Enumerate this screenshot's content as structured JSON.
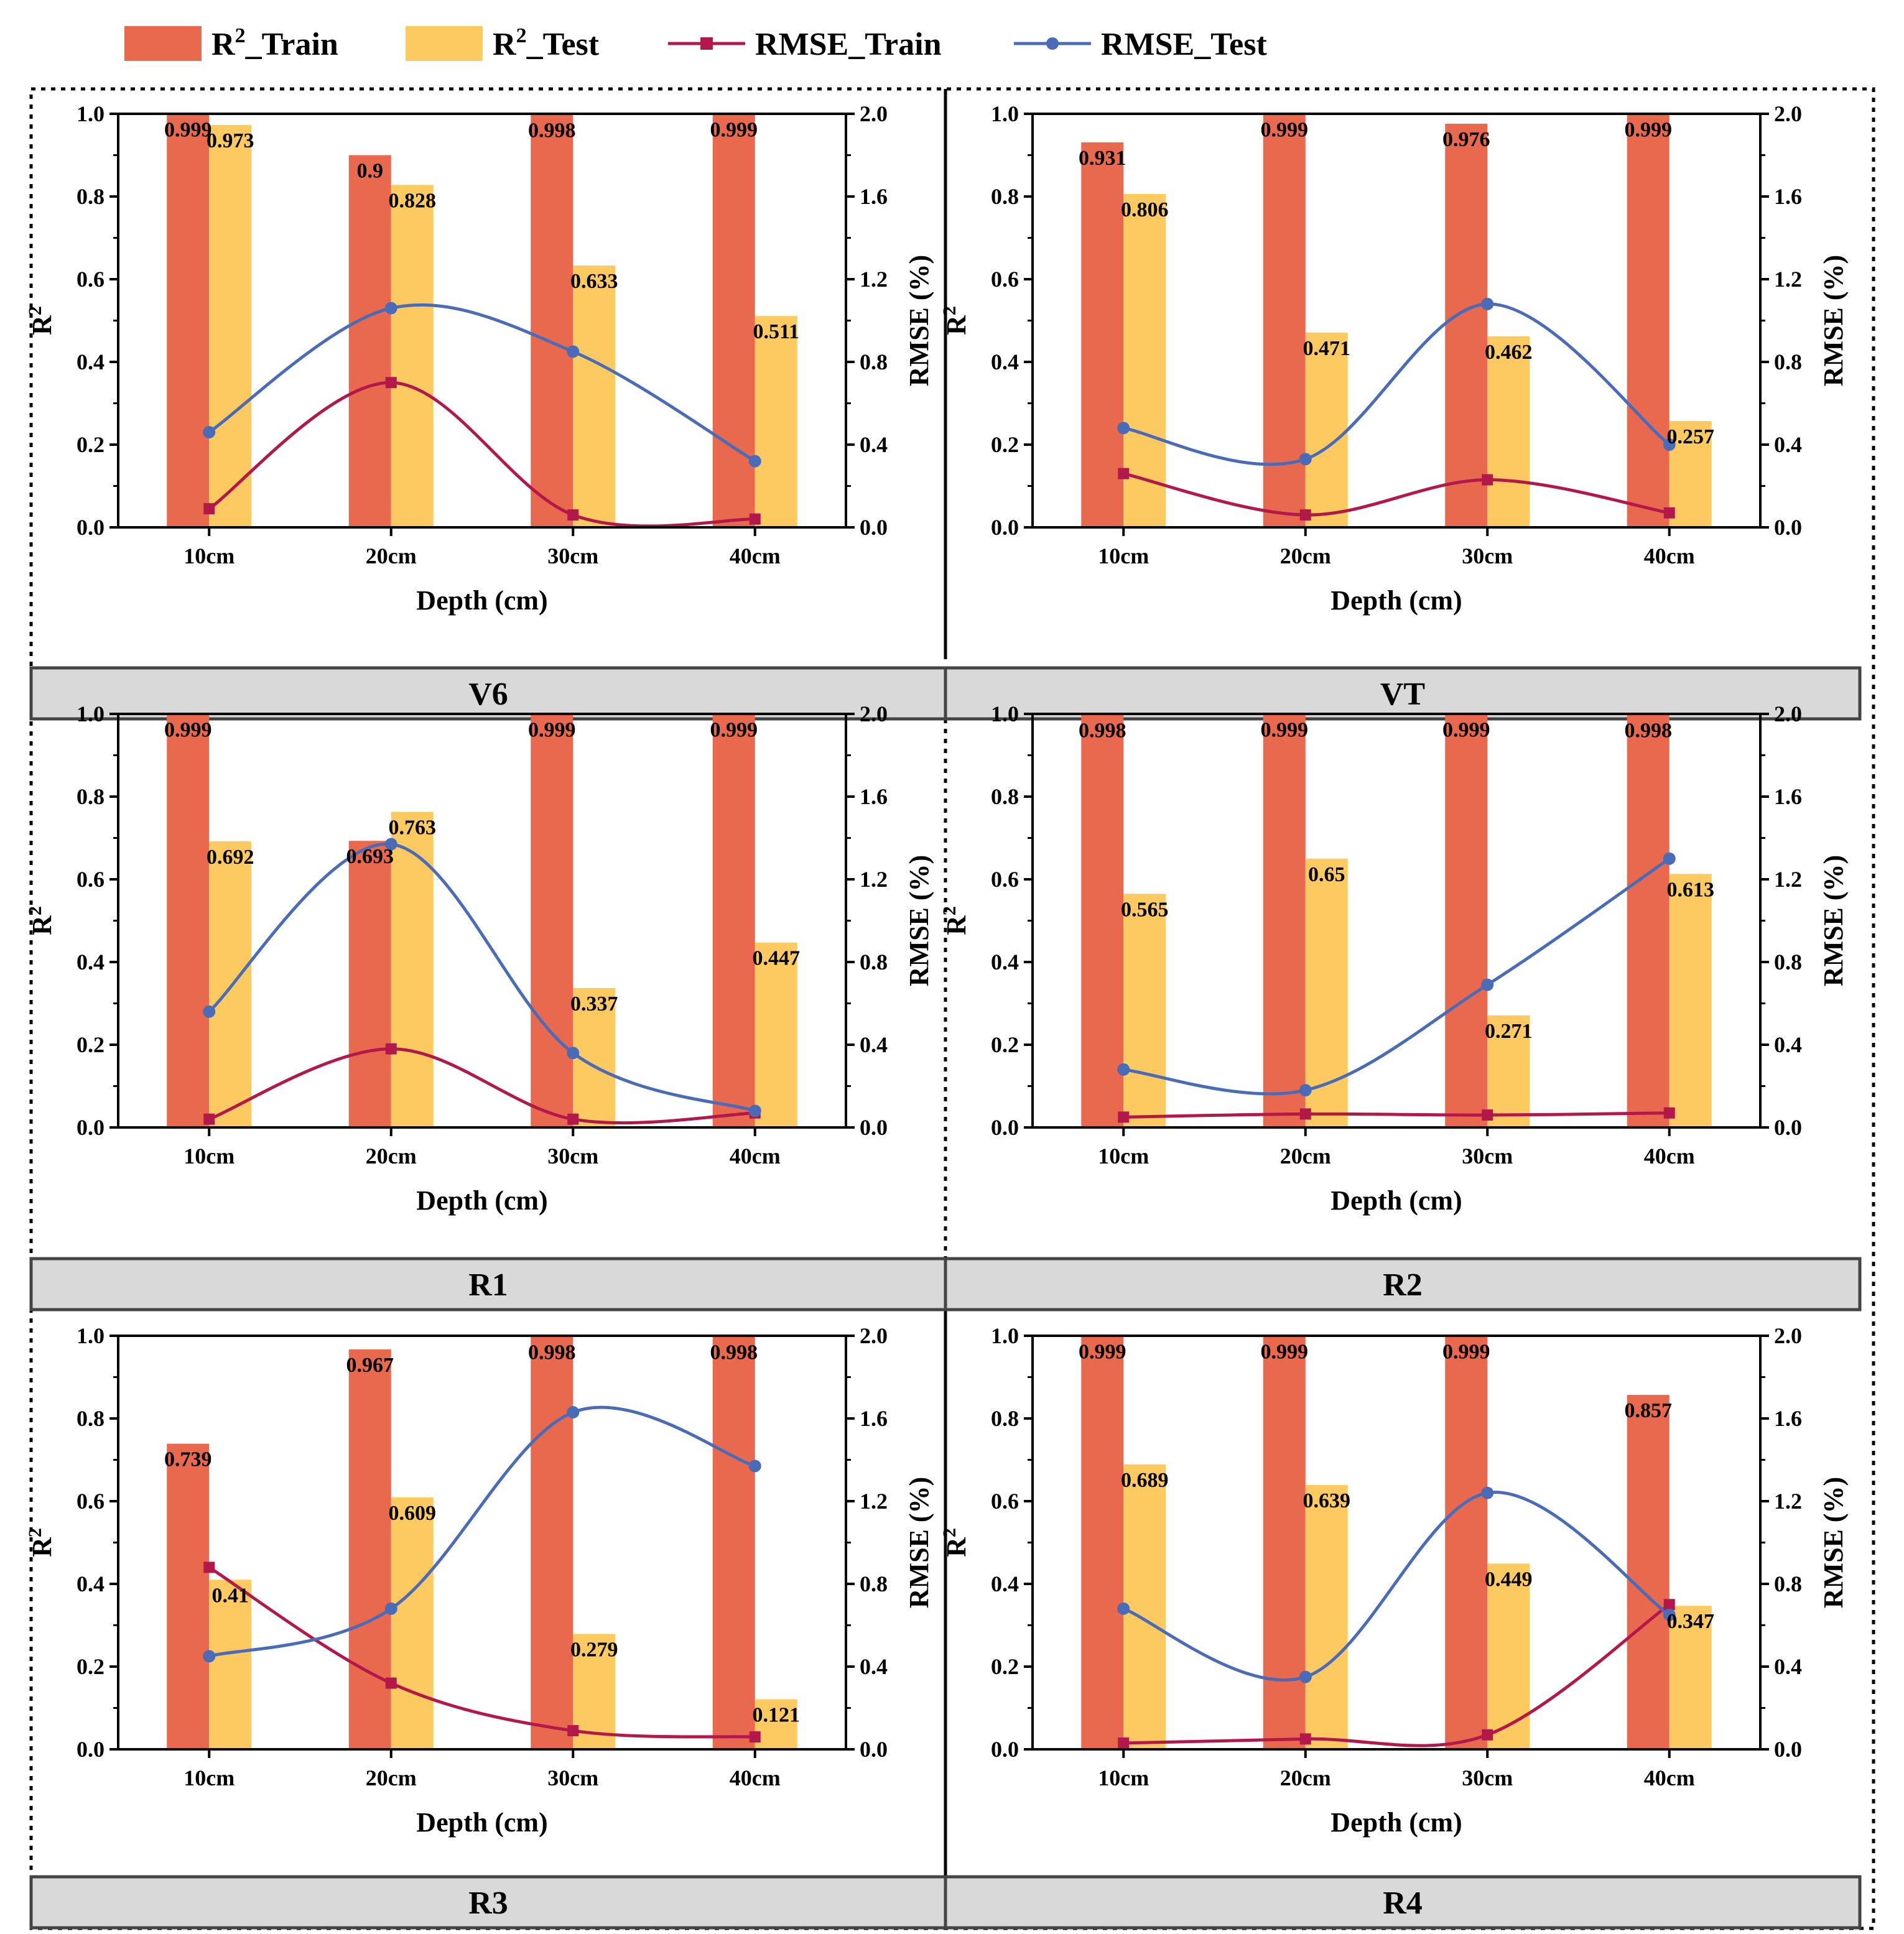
{
  "legend": [
    {
      "key": "train_r2",
      "prefix": "R",
      "sup": "2",
      "suffix": "_Train",
      "kind": "bar",
      "color": "#e8694e"
    },
    {
      "key": "test_r2",
      "prefix": "R",
      "sup": "2",
      "suffix": "_Test",
      "kind": "bar",
      "color": "#fdca62"
    },
    {
      "key": "rmse_train",
      "prefix": "",
      "sup": "",
      "suffix": "RMSE_Train",
      "kind": "line",
      "color": "#b3184a"
    },
    {
      "key": "rmse_test",
      "prefix": "",
      "sup": "",
      "suffix": "RMSE_Test",
      "kind": "line",
      "color": "#4a6cb8"
    }
  ],
  "axis_text": {
    "xlabel": "Depth (cm)",
    "ylabel_left_base": "R",
    "ylabel_left_sup": "2",
    "ylabel_right": "RMSE (%)"
  },
  "chart_data": [
    {
      "type": "bar",
      "title": "V6",
      "categories": [
        "10cm",
        "20cm",
        "30cm",
        "40cm"
      ],
      "ylim": [
        0,
        1.0
      ],
      "y2lim": [
        0,
        2.0
      ],
      "yticks": [
        "0.0",
        "0.2",
        "0.4",
        "0.6",
        "0.8",
        "1.0"
      ],
      "y2ticks": [
        "0.0",
        "0.4",
        "0.8",
        "1.2",
        "1.6",
        "2.0"
      ],
      "train_r2": [
        0.999,
        0.9,
        0.998,
        0.999
      ],
      "train_labels": [
        "0.999",
        "0.9",
        "0.998",
        "0.999"
      ],
      "test_r2": [
        0.973,
        0.828,
        0.633,
        0.511
      ],
      "test_labels": [
        "0.973",
        "0.828",
        "0.633",
        "0.511"
      ],
      "rmse_train": [
        0.09,
        0.7,
        0.06,
        0.04
      ],
      "rmse_test": [
        0.46,
        1.06,
        0.85,
        0.32
      ]
    },
    {
      "type": "bar",
      "title": "VT",
      "categories": [
        "10cm",
        "20cm",
        "30cm",
        "40cm"
      ],
      "ylim": [
        0,
        1.0
      ],
      "y2lim": [
        0,
        2.0
      ],
      "yticks": [
        "0.0",
        "0.2",
        "0.4",
        "0.6",
        "0.8",
        "1.0"
      ],
      "y2ticks": [
        "0.0",
        "0.4",
        "0.8",
        "1.2",
        "1.6",
        "2.0"
      ],
      "train_r2": [
        0.931,
        0.999,
        0.976,
        0.999
      ],
      "train_labels": [
        "0.931",
        "0.999",
        "0.976",
        "0.999"
      ],
      "test_r2": [
        0.806,
        0.471,
        0.462,
        0.257
      ],
      "test_labels": [
        "0.806",
        "0.471",
        "0.462",
        "0.257"
      ],
      "rmse_train": [
        0.26,
        0.06,
        0.23,
        0.07
      ],
      "rmse_test": [
        0.48,
        0.33,
        1.08,
        0.4
      ]
    },
    {
      "type": "bar",
      "title": "R1",
      "categories": [
        "10cm",
        "20cm",
        "30cm",
        "40cm"
      ],
      "ylim": [
        0,
        1.0
      ],
      "y2lim": [
        0,
        2.0
      ],
      "yticks": [
        "0.0",
        "0.2",
        "0.4",
        "0.6",
        "0.8",
        "1.0"
      ],
      "y2ticks": [
        "0.0",
        "0.4",
        "0.8",
        "1.2",
        "1.6",
        "2.0"
      ],
      "train_r2": [
        0.999,
        0.693,
        0.999,
        0.999
      ],
      "train_labels": [
        "0.999",
        "0.693",
        "0.999",
        "0.999"
      ],
      "test_r2": [
        0.692,
        0.763,
        0.337,
        0.447
      ],
      "test_labels": [
        "0.692",
        "0.763",
        "0.337",
        "0.447"
      ],
      "rmse_train": [
        0.04,
        0.38,
        0.04,
        0.07
      ],
      "rmse_test": [
        0.56,
        1.37,
        0.36,
        0.08
      ]
    },
    {
      "type": "bar",
      "title": "R2",
      "categories": [
        "10cm",
        "20cm",
        "30cm",
        "40cm"
      ],
      "ylim": [
        0,
        1.0
      ],
      "y2lim": [
        0,
        2.0
      ],
      "yticks": [
        "0.0",
        "0.2",
        "0.4",
        "0.6",
        "0.8",
        "1.0"
      ],
      "y2ticks": [
        "0.0",
        "0.4",
        "0.8",
        "1.2",
        "1.6",
        "2.0"
      ],
      "train_r2": [
        0.998,
        0.999,
        0.999,
        0.998
      ],
      "train_labels": [
        "0.998",
        "0.999",
        "0.999",
        "0.998"
      ],
      "test_r2": [
        0.565,
        0.65,
        0.271,
        0.613
      ],
      "test_labels": [
        "0.565",
        "0.65",
        "0.271",
        "0.613"
      ],
      "rmse_train": [
        0.05,
        0.065,
        0.06,
        0.07
      ],
      "rmse_test": [
        0.28,
        0.18,
        0.69,
        1.3
      ]
    },
    {
      "type": "bar",
      "title": "R3",
      "categories": [
        "10cm",
        "20cm",
        "30cm",
        "40cm"
      ],
      "ylim": [
        0,
        1.0
      ],
      "y2lim": [
        0,
        2.0
      ],
      "yticks": [
        "0.0",
        "0.2",
        "0.4",
        "0.6",
        "0.8",
        "1.0"
      ],
      "y2ticks": [
        "0.0",
        "0.4",
        "0.8",
        "1.2",
        "1.6",
        "2.0"
      ],
      "train_r2": [
        0.739,
        0.967,
        0.998,
        0.998
      ],
      "train_labels": [
        "0.739",
        "0.967",
        "0.998",
        "0.998"
      ],
      "test_r2": [
        0.41,
        0.609,
        0.279,
        0.121
      ],
      "test_labels": [
        "0.41",
        "0.609",
        "0.279",
        "0.121"
      ],
      "rmse_train": [
        0.88,
        0.32,
        0.09,
        0.06
      ],
      "rmse_test": [
        0.45,
        0.68,
        1.63,
        1.37
      ]
    },
    {
      "type": "bar",
      "title": "R4",
      "categories": [
        "10cm",
        "20cm",
        "30cm",
        "40cm"
      ],
      "ylim": [
        0,
        1.0
      ],
      "y2lim": [
        0,
        2.0
      ],
      "yticks": [
        "0.0",
        "0.2",
        "0.4",
        "0.6",
        "0.8",
        "1.0"
      ],
      "y2ticks": [
        "0.0",
        "0.4",
        "0.8",
        "1.2",
        "1.6",
        "2.0"
      ],
      "train_r2": [
        0.999,
        0.999,
        0.999,
        0.857
      ],
      "train_labels": [
        "0.999",
        "0.999",
        "0.999",
        "0.857"
      ],
      "test_r2": [
        0.689,
        0.639,
        0.449,
        0.347
      ],
      "test_labels": [
        "0.689",
        "0.639",
        "0.449",
        "0.347"
      ],
      "rmse_train": [
        0.03,
        0.05,
        0.07,
        0.7
      ],
      "rmse_test": [
        0.68,
        0.35,
        1.24,
        0.65
      ]
    }
  ]
}
